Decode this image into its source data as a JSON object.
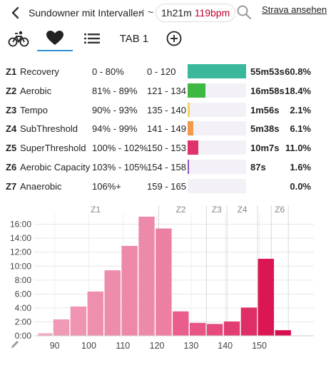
{
  "header": {
    "title": "Sundowner mit Intervallen",
    "separator": "~",
    "duration": "1h21m",
    "avg_hr": "119bpm",
    "strava_link": "Strava ansehen"
  },
  "tabs": {
    "text_tab_label": "TAB 1"
  },
  "colors": {
    "accent": "#2b8fd6",
    "hr_red": "#c2002f",
    "bar_bg": "#f3f1f7"
  },
  "zones": [
    {
      "id": "Z1",
      "name": "Recovery",
      "pct_range": "0 - 80%",
      "bpm_range": "0 - 120",
      "time": "55m53s",
      "share": "60.8%",
      "fraction": 1.0,
      "color": "#3bb89c"
    },
    {
      "id": "Z2",
      "name": "Aerobic",
      "pct_range": "81% - 89%",
      "bpm_range": "121 - 134",
      "time": "16m58s",
      "share": "18.4%",
      "fraction": 0.303,
      "color": "#3cb843"
    },
    {
      "id": "Z3",
      "name": "Tempo",
      "pct_range": "90% - 93%",
      "bpm_range": "135 - 140",
      "time": "1m56s",
      "share": "2.1%",
      "fraction": 0.035,
      "color": "#f2d45c"
    },
    {
      "id": "Z4",
      "name": "SubThreshold",
      "pct_range": "94% - 99%",
      "bpm_range": "141 - 149",
      "time": "5m38s",
      "share": "6.1%",
      "fraction": 0.1,
      "color": "#f39a4a"
    },
    {
      "id": "Z5",
      "name": "SuperThreshold",
      "pct_range": "100% - 102%",
      "bpm_range": "150 - 153",
      "time": "10m7s",
      "share": "11.0%",
      "fraction": 0.181,
      "color": "#e0336b"
    },
    {
      "id": "Z6",
      "name": "Aerobic Capacity",
      "pct_range": "103% - 105%",
      "bpm_range": "154 - 158",
      "time": "87s",
      "share": "1.6%",
      "fraction": 0.026,
      "color": "#8c55c8"
    },
    {
      "id": "Z7",
      "name": "Anaerobic",
      "pct_range": "106%+",
      "bpm_range": "159 - 165",
      "time": "",
      "share": "0.0%",
      "fraction": 0,
      "color": "#5a3ab0"
    }
  ],
  "chart_data": {
    "type": "bar",
    "xlabel": "",
    "ylabel": "",
    "x_range": [
      84,
      166
    ],
    "ylim": [
      0,
      17.5
    ],
    "x_ticks": [
      90,
      100,
      110,
      120,
      130,
      140,
      150
    ],
    "y_ticks": [
      "0:00",
      "2:00",
      "4:00",
      "6:00",
      "8:00",
      "10:00",
      "12:00",
      "14:00",
      "16:00"
    ],
    "y_tick_values": [
      0,
      2,
      4,
      6,
      8,
      10,
      12,
      14,
      16
    ],
    "zone_labels": [
      {
        "label": "Z1",
        "x": 102
      },
      {
        "label": "Z2",
        "x": 127
      },
      {
        "label": "Z3",
        "x": 137.5
      },
      {
        "label": "Z4",
        "x": 145
      },
      {
        "label": "Z6",
        "x": 156
      }
    ],
    "zone_boundaries": [
      120.5,
      134.5,
      140.5,
      149.5,
      153.5,
      158.5
    ],
    "grid": true,
    "bars": [
      {
        "x0": 85,
        "x1": 89.5,
        "y": 0.35,
        "color": "#f2a5bc"
      },
      {
        "x0": 89.5,
        "x1": 94.5,
        "y": 2.35,
        "color": "#f09ab5"
      },
      {
        "x0": 94.5,
        "x1": 99.5,
        "y": 4.2,
        "color": "#ef95b1"
      },
      {
        "x0": 99.5,
        "x1": 104.5,
        "y": 6.35,
        "color": "#ee90ad"
      },
      {
        "x0": 104.5,
        "x1": 109.5,
        "y": 9.4,
        "color": "#ee8cab"
      },
      {
        "x0": 109.5,
        "x1": 114.5,
        "y": 12.9,
        "color": "#ed88a8"
      },
      {
        "x0": 114.5,
        "x1": 119.5,
        "y": 17.1,
        "color": "#ee8aa9"
      },
      {
        "x0": 119.5,
        "x1": 124.5,
        "y": 15.4,
        "color": "#ed7fa2"
      },
      {
        "x0": 124.5,
        "x1": 129.5,
        "y": 3.5,
        "color": "#e95e8c"
      },
      {
        "x0": 129.5,
        "x1": 134.5,
        "y": 1.85,
        "color": "#e85585"
      },
      {
        "x0": 134.5,
        "x1": 139.5,
        "y": 1.7,
        "color": "#e64a7d"
      },
      {
        "x0": 139.5,
        "x1": 144.5,
        "y": 2.05,
        "color": "#e23d73"
      },
      {
        "x0": 144.5,
        "x1": 149.5,
        "y": 4.05,
        "color": "#df2d66"
      },
      {
        "x0": 149.5,
        "x1": 154.5,
        "y": 11.05,
        "color": "#dc1553"
      },
      {
        "x0": 154.5,
        "x1": 159.5,
        "y": 0.8,
        "color": "#d90f4d"
      }
    ]
  }
}
